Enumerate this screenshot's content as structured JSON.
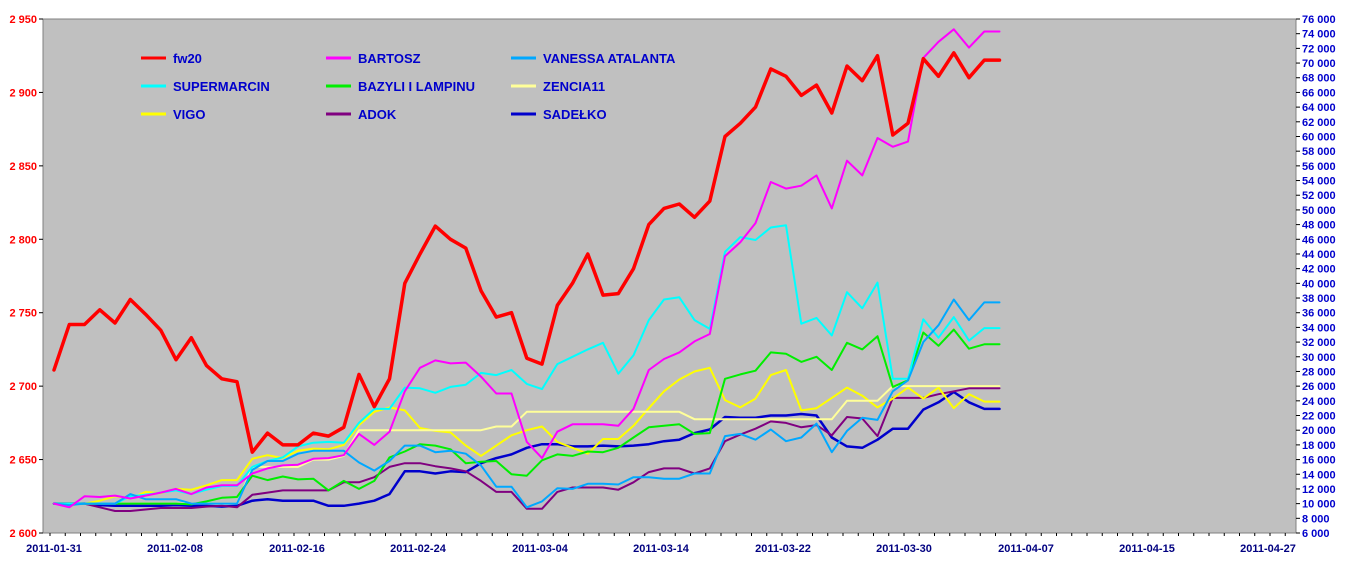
{
  "chart_data": {
    "type": "line",
    "title": "",
    "xlabel": "",
    "ylabel": "",
    "grid": false,
    "legend_position": "top-left inside plot",
    "plot_background": "#c0c0c0",
    "left_axis": {
      "ylim": [
        2600,
        2950
      ],
      "ticks": [
        "2 600",
        "2 650",
        "2 700",
        "2 750",
        "2 800",
        "2 850",
        "2 900",
        "2 950"
      ],
      "tick_values": [
        2600,
        2650,
        2700,
        2750,
        2800,
        2850,
        2900,
        2950
      ],
      "color": "#ff0000"
    },
    "right_axis": {
      "ylim": [
        6000,
        76000
      ],
      "ticks": [
        "6 000",
        "8 000",
        "10 000",
        "12 000",
        "14 000",
        "16 000",
        "18 000",
        "20 000",
        "22 000",
        "24 000",
        "26 000",
        "28 000",
        "30 000",
        "32 000",
        "34 000",
        "36 000",
        "38 000",
        "40 000",
        "42 000",
        "44 000",
        "46 000",
        "48 000",
        "50 000",
        "52 000",
        "54 000",
        "56 000",
        "58 000",
        "60 000",
        "62 000",
        "64 000",
        "66 000",
        "68 000",
        "70 000",
        "72 000",
        "74 000",
        "76 000"
      ],
      "tick_values": [
        6000,
        8000,
        10000,
        12000,
        14000,
        16000,
        18000,
        20000,
        22000,
        24000,
        26000,
        28000,
        30000,
        32000,
        34000,
        36000,
        38000,
        40000,
        42000,
        44000,
        46000,
        48000,
        50000,
        52000,
        54000,
        56000,
        58000,
        60000,
        62000,
        64000,
        66000,
        68000,
        70000,
        72000,
        74000,
        76000
      ],
      "color": "#0000cc"
    },
    "x_count": 63,
    "x_ticks": [
      {
        "index": 0,
        "label": "2011-01-31"
      },
      {
        "index": 8,
        "label": "2011-02-08"
      },
      {
        "index": 16,
        "label": "2011-02-16"
      },
      {
        "index": 24,
        "label": "2011-02-24"
      },
      {
        "index": 32,
        "label": "2011-03-04"
      },
      {
        "index": 40,
        "label": "2011-03-14"
      },
      {
        "index": 48,
        "label": "2011-03-22"
      },
      {
        "index": 56,
        "label": "2011-03-30"
      },
      {
        "index": 64,
        "label": "2011-04-07"
      },
      {
        "index": 72,
        "label": "2011-04-15"
      },
      {
        "index": 80,
        "label": "2011-04-27"
      }
    ],
    "series": [
      {
        "name": "fw20",
        "axis": "left",
        "color": "#ff0000",
        "width": 3.5,
        "values": [
          2711,
          2742,
          2742,
          2752,
          2743,
          2759,
          2749,
          2738,
          2718,
          2733,
          2714,
          2705,
          2703,
          2655,
          2668,
          2660,
          2660,
          2668,
          2666,
          2672,
          2708,
          2686,
          2705,
          2770,
          2790,
          2809,
          2800,
          2794,
          2765,
          2747,
          2750,
          2719,
          2715,
          2755,
          2770,
          2790,
          2762,
          2763,
          2780,
          2810,
          2821,
          2824,
          2815,
          2826,
          2870,
          2879,
          2890,
          2916,
          2911,
          2898,
          2905,
          2886,
          2918,
          2908,
          2925,
          2871,
          2879,
          2923,
          2911,
          2927,
          2910,
          2922,
          2922
        ]
      },
      {
        "name": "BARTOSZ",
        "axis": "right",
        "color": "#ff00ff",
        "width": 2,
        "values": [
          10000,
          9500,
          11000,
          10900,
          11100,
          10700,
          11100,
          11500,
          12000,
          11300,
          12200,
          12500,
          12500,
          14100,
          14800,
          15200,
          15300,
          16100,
          16200,
          16600,
          19500,
          18000,
          19800,
          25300,
          28500,
          29500,
          29100,
          29200,
          27300,
          25000,
          25000,
          18400,
          16200,
          19800,
          20800,
          20800,
          20800,
          20600,
          22900,
          28200,
          29700,
          30600,
          32100,
          33100,
          43700,
          45600,
          48200,
          53800,
          52900,
          53300,
          54700,
          50200,
          56700,
          54700,
          59800,
          58600,
          59300,
          70700,
          72900,
          74600,
          72100,
          74300,
          74300
        ]
      },
      {
        "name": "VANESSA ATALANTA",
        "axis": "right",
        "color": "#00a8ff",
        "width": 2,
        "values": [
          10000,
          9800,
          10000,
          10000,
          10000,
          11300,
          10600,
          10600,
          10600,
          10000,
          10000,
          10000,
          10000,
          14600,
          15800,
          15800,
          16800,
          17200,
          17200,
          17200,
          15600,
          14500,
          15800,
          17900,
          17900,
          17000,
          17200,
          16800,
          15200,
          12300,
          12300,
          9500,
          10300,
          12100,
          12000,
          12700,
          12700,
          12600,
          13600,
          13600,
          13400,
          13400,
          14100,
          14100,
          19200,
          19500,
          18700,
          20100,
          18500,
          19000,
          20900,
          17000,
          19900,
          21700,
          21400,
          25300,
          26800,
          32000,
          34300,
          37800,
          35000,
          37400,
          37400
        ]
      },
      {
        "name": "SUPERMARCIN",
        "axis": "right",
        "color": "#00ffff",
        "width": 2,
        "values": [
          10000,
          10000,
          10000,
          10000,
          10000,
          11000,
          11200,
          11500,
          11800,
          11300,
          11900,
          12400,
          12400,
          15000,
          15800,
          16300,
          17800,
          18300,
          18400,
          18300,
          21000,
          22900,
          22900,
          25800,
          25700,
          25100,
          25900,
          26200,
          27800,
          27500,
          28200,
          26300,
          25600,
          29000,
          30000,
          31000,
          31900,
          27700,
          30200,
          35000,
          37800,
          38100,
          35000,
          33800,
          44300,
          46300,
          45900,
          47600,
          47900,
          34500,
          35300,
          32900,
          38800,
          36600,
          40100,
          27000,
          27000,
          35100,
          32600,
          35400,
          32200,
          33900,
          33900
        ]
      },
      {
        "name": "BAZYLI I LAMPINU",
        "axis": "right",
        "color": "#00ee00",
        "width": 2,
        "values": [
          10000,
          10000,
          10000,
          10000,
          10000,
          10000,
          10000,
          10000,
          10000,
          9900,
          10300,
          10800,
          10900,
          13800,
          13200,
          13700,
          13300,
          13400,
          11800,
          13100,
          12000,
          13100,
          16300,
          17100,
          18100,
          17900,
          17400,
          15500,
          15700,
          15800,
          14000,
          13800,
          15900,
          16700,
          16500,
          17100,
          17000,
          17600,
          19000,
          20400,
          20600,
          20800,
          19500,
          19600,
          27000,
          27600,
          28100,
          30600,
          30400,
          29300,
          30000,
          28200,
          31900,
          31000,
          32800,
          25900,
          26800,
          33300,
          31500,
          33700,
          31100,
          31700,
          31700
        ]
      },
      {
        "name": "ZENCIA11",
        "axis": "right",
        "color": "#ffff99",
        "width": 2,
        "values": [
          10000,
          10000,
          10000,
          10000,
          10000,
          10000,
          10000,
          10000,
          10000,
          10000,
          10000,
          10000,
          10000,
          15000,
          15000,
          15000,
          15000,
          16000,
          16000,
          16500,
          20000,
          20000,
          20000,
          20000,
          20000,
          20000,
          20000,
          20000,
          20000,
          20500,
          20500,
          22500,
          22500,
          22500,
          22500,
          22500,
          22500,
          22500,
          22500,
          22500,
          22500,
          22500,
          21500,
          21500,
          21500,
          21500,
          21500,
          21500,
          21500,
          21500,
          21500,
          21500,
          24000,
          24000,
          24000,
          26000,
          26000,
          26000,
          26000,
          26000,
          26000,
          26000,
          26000
        ]
      },
      {
        "name": "VIGO",
        "axis": "right",
        "color": "#ffff00",
        "width": 2,
        "values": [
          10000,
          10000,
          10000,
          10400,
          11000,
          10700,
          11600,
          11400,
          12000,
          11900,
          12500,
          13200,
          13200,
          16100,
          16600,
          16200,
          17200,
          17500,
          17400,
          18000,
          20700,
          22500,
          23100,
          22700,
          20300,
          19900,
          19700,
          17900,
          16500,
          17900,
          19300,
          20000,
          20500,
          18400,
          17600,
          16800,
          18800,
          18800,
          20600,
          23000,
          25300,
          26900,
          28000,
          28500,
          24100,
          23100,
          24300,
          27500,
          28200,
          22700,
          23000,
          24400,
          25800,
          24700,
          23100,
          24300,
          25800,
          24300,
          25800,
          23000,
          24900,
          23900,
          23900
        ]
      },
      {
        "name": "ADOK",
        "axis": "right",
        "color": "#800080",
        "width": 2,
        "values": [
          10000,
          10000,
          10000,
          9500,
          9000,
          9000,
          9200,
          9400,
          9400,
          9400,
          9600,
          9700,
          9500,
          11200,
          11500,
          11800,
          11800,
          11800,
          11800,
          12900,
          12900,
          13600,
          15000,
          15500,
          15500,
          15100,
          14800,
          14400,
          13100,
          11600,
          11600,
          9300,
          9300,
          11600,
          12200,
          12200,
          12200,
          11900,
          12900,
          14300,
          14800,
          14800,
          14100,
          14800,
          18500,
          19400,
          20200,
          21200,
          21000,
          20400,
          20700,
          19300,
          21800,
          21600,
          19200,
          24400,
          24400,
          24400,
          24900,
          25300,
          25700,
          25700,
          25700
        ]
      },
      {
        "name": "SADEŁKO",
        "axis": "right",
        "color": "#0000cc",
        "width": 2.5,
        "values": [
          10000,
          10000,
          10000,
          9800,
          9700,
          9700,
          9700,
          9700,
          9800,
          9700,
          9700,
          9600,
          9700,
          10400,
          10600,
          10400,
          10400,
          10400,
          9700,
          9700,
          10000,
          10400,
          11300,
          14400,
          14400,
          14100,
          14400,
          14300,
          15500,
          16200,
          16700,
          17600,
          18100,
          18100,
          17800,
          17800,
          17900,
          17800,
          17900,
          18100,
          18500,
          18700,
          19600,
          20100,
          21800,
          21700,
          21700,
          22000,
          22000,
          22200,
          22000,
          19000,
          17800,
          17600,
          18700,
          20200,
          20200,
          22800,
          23800,
          25200,
          23800,
          22900,
          22900
        ]
      }
    ],
    "legend": [
      {
        "name": "fw20",
        "color": "#ff0000",
        "col": 0,
        "row": 0
      },
      {
        "name": "BARTOSZ",
        "color": "#ff00ff",
        "col": 1,
        "row": 0
      },
      {
        "name": "VANESSA ATALANTA",
        "color": "#00a8ff",
        "col": 2,
        "row": 0
      },
      {
        "name": "SUPERMARCIN",
        "color": "#00ffff",
        "col": 0,
        "row": 1
      },
      {
        "name": "BAZYLI I LAMPINU",
        "color": "#00ee00",
        "col": 1,
        "row": 1
      },
      {
        "name": "ZENCIA11",
        "color": "#ffff99",
        "col": 2,
        "row": 1
      },
      {
        "name": "VIGO",
        "color": "#ffff00",
        "col": 0,
        "row": 2
      },
      {
        "name": "ADOK",
        "color": "#800080",
        "col": 1,
        "row": 2
      },
      {
        "name": "SADEŁKO",
        "color": "#0000cc",
        "col": 2,
        "row": 2
      }
    ]
  }
}
